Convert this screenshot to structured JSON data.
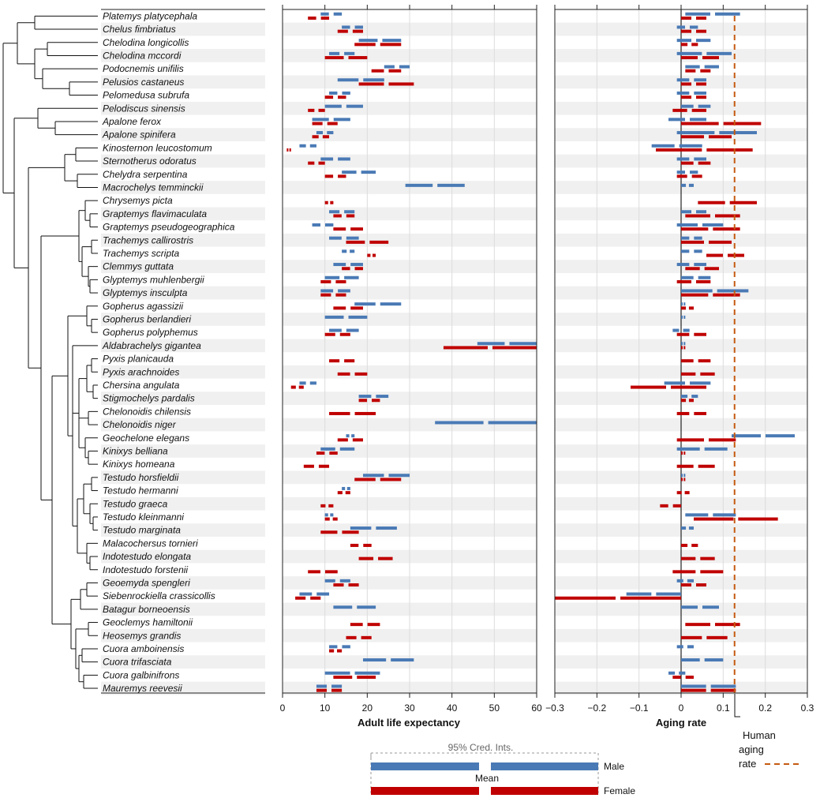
{
  "colors": {
    "male": "#4a7ab5",
    "female": "#c00000",
    "human": "#c55a11",
    "stripe": "#f0f0f0",
    "grid": "#dcdcdc"
  },
  "chart_data": [
    {
      "type": "interval",
      "xlabel": "Adult life expectancy",
      "xlim": [
        0,
        60
      ],
      "ticks": [
        "0",
        "10",
        "20",
        "30",
        "40",
        "50",
        "60"
      ],
      "series": [
        {
          "name": "Male",
          "intervals": [
            [
              9,
              14
            ],
            [
              14,
              19
            ],
            [
              18,
              28
            ],
            [
              11,
              17
            ],
            [
              24,
              30
            ],
            [
              13,
              24
            ],
            [
              11,
              16
            ],
            [
              10,
              19
            ],
            [
              7,
              16
            ],
            [
              8,
              12
            ],
            [
              4,
              8
            ],
            [
              9,
              16
            ],
            [
              14,
              22
            ],
            [
              29,
              43
            ],
            null,
            [
              11,
              17
            ],
            [
              7,
              12
            ],
            [
              11,
              18
            ],
            [
              14,
              17
            ],
            [
              12,
              19
            ],
            [
              10,
              18
            ],
            [
              9,
              16
            ],
            [
              17,
              28
            ],
            [
              10,
              20
            ],
            [
              11,
              18
            ],
            [
              46,
              62
            ],
            null,
            null,
            [
              4,
              8
            ],
            [
              18,
              25
            ],
            null,
            [
              36,
              62
            ],
            [
              15,
              17
            ],
            [
              9,
              17
            ],
            null,
            [
              19,
              30
            ],
            [
              14,
              16
            ],
            null,
            [
              10,
              12
            ],
            [
              16,
              27
            ],
            null,
            null,
            null,
            [
              10,
              16
            ],
            [
              4,
              11
            ],
            [
              12,
              22
            ],
            null,
            null,
            [
              11,
              16
            ],
            [
              19,
              31
            ],
            [
              10,
              23
            ],
            [
              8,
              14
            ]
          ]
        },
        {
          "name": "Female",
          "intervals": [
            [
              6,
              11
            ],
            [
              13,
              19
            ],
            [
              17,
              28
            ],
            [
              10,
              20
            ],
            [
              21,
              28
            ],
            [
              18,
              31
            ],
            [
              10,
              15
            ],
            [
              6,
              10
            ],
            [
              7,
              13
            ],
            [
              7,
              11
            ],
            [
              1,
              2
            ],
            [
              6,
              10
            ],
            [
              10,
              15
            ],
            null,
            [
              10,
              12
            ],
            [
              12,
              17
            ],
            [
              12,
              19
            ],
            [
              15,
              25
            ],
            [
              20,
              22
            ],
            [
              14,
              19
            ],
            [
              9,
              15
            ],
            [
              9,
              15
            ],
            [
              12,
              19
            ],
            [
              null,
              null
            ],
            [
              10,
              16
            ],
            [
              38,
              62
            ],
            [
              11,
              17
            ],
            [
              13,
              20
            ],
            [
              2,
              5
            ],
            [
              18,
              23
            ],
            [
              11,
              22
            ],
            null,
            [
              13,
              19
            ],
            [
              8,
              13
            ],
            [
              5,
              11
            ],
            [
              17,
              28
            ],
            [
              13,
              16
            ],
            [
              9,
              12
            ],
            [
              10,
              13
            ],
            [
              9,
              18
            ],
            [
              16,
              21
            ],
            [
              18,
              26
            ],
            [
              6,
              13
            ],
            [
              12,
              18
            ],
            [
              3,
              9
            ],
            null,
            [
              16,
              23
            ],
            [
              15,
              21
            ],
            [
              11,
              14
            ],
            null,
            [
              12,
              22
            ],
            [
              8,
              14
            ]
          ]
        }
      ]
    },
    {
      "type": "interval",
      "xlabel": "Aging rate",
      "xlim": [
        -0.3,
        0.3
      ],
      "ticks": [
        "−0.3",
        "−0.2",
        "−0.1",
        "0",
        "0.1",
        "0.2",
        "0.3"
      ],
      "human_aging_rate": 0.127,
      "series": [
        {
          "name": "Male",
          "intervals": [
            [
              0.01,
              0.14
            ],
            [
              -0.01,
              0.04
            ],
            [
              -0.01,
              0.07
            ],
            [
              -0.01,
              0.12
            ],
            [
              0.01,
              0.09
            ],
            [
              -0.01,
              0.06
            ],
            [
              -0.01,
              0.06
            ],
            [
              0.0,
              0.07
            ],
            [
              -0.03,
              0.06
            ],
            [
              -0.01,
              0.18
            ],
            [
              -0.07,
              0.05
            ],
            [
              -0.01,
              0.06
            ],
            [
              -0.01,
              0.04
            ],
            [
              0.0,
              0.03
            ],
            null,
            [
              0.0,
              0.06
            ],
            [
              -0.01,
              0.1
            ],
            [
              0.0,
              0.05
            ],
            [
              0.0,
              0.05
            ],
            [
              -0.01,
              0.06
            ],
            [
              0.0,
              0.07
            ],
            [
              0.0,
              0.16
            ],
            [
              0.0,
              0.01
            ],
            [
              0.0,
              0.01
            ],
            [
              -0.02,
              0.02
            ],
            [
              0.0,
              0.01
            ],
            null,
            null,
            [
              -0.04,
              0.07
            ],
            [
              0.0,
              0.04
            ],
            null,
            null,
            [
              0.12,
              0.27
            ],
            [
              -0.01,
              0.11
            ],
            null,
            [
              0.0,
              0.01
            ],
            null,
            null,
            [
              0.01,
              0.13
            ],
            [
              0.0,
              0.03
            ],
            null,
            null,
            null,
            [
              -0.01,
              0.03
            ],
            [
              -0.13,
              0.0
            ],
            [
              0.0,
              0.09
            ],
            null,
            null,
            [
              -0.01,
              0.03
            ],
            [
              0.0,
              0.1
            ],
            [
              -0.03,
              0.01
            ],
            [
              0.0,
              0.13
            ]
          ]
        },
        {
          "name": "Female",
          "intervals": [
            [
              0.0,
              0.06
            ],
            [
              0.0,
              0.06
            ],
            [
              0.0,
              0.04
            ],
            [
              0.0,
              0.09
            ],
            [
              0.01,
              0.07
            ],
            [
              0.0,
              0.06
            ],
            [
              0.0,
              0.06
            ],
            [
              -0.02,
              0.06
            ],
            [
              0.0,
              0.19
            ],
            [
              0.0,
              0.12
            ],
            [
              -0.06,
              0.17
            ],
            [
              0.0,
              0.07
            ],
            [
              -0.01,
              0.05
            ],
            null,
            [
              0.04,
              0.18
            ],
            [
              0.01,
              0.14
            ],
            [
              0.0,
              0.14
            ],
            [
              0.0,
              0.12
            ],
            [
              0.06,
              0.15
            ],
            [
              0.01,
              0.09
            ],
            [
              -0.01,
              0.07
            ],
            [
              0.0,
              0.14
            ],
            [
              0.0,
              0.03
            ],
            null,
            [
              -0.01,
              0.06
            ],
            [
              0.0,
              0.01
            ],
            [
              0.0,
              0.07
            ],
            [
              0.0,
              0.08
            ],
            [
              -0.12,
              0.06
            ],
            [
              0.0,
              0.03
            ],
            [
              -0.01,
              0.06
            ],
            null,
            [
              -0.01,
              0.13
            ],
            [
              0.0,
              0.01
            ],
            [
              -0.01,
              0.08
            ],
            [
              0.0,
              0.01
            ],
            [
              -0.01,
              0.02
            ],
            [
              -0.05,
              0.0
            ],
            [
              0.03,
              0.23
            ],
            null,
            [
              0.0,
              0.04
            ],
            [
              0.0,
              0.08
            ],
            [
              -0.02,
              0.1
            ],
            [
              0.0,
              0.06
            ],
            [
              -0.32,
              0.0
            ],
            null,
            [
              0.01,
              0.14
            ],
            [
              0.0,
              0.11
            ],
            null,
            null,
            [
              -0.02,
              0.03
            ],
            [
              0.0,
              0.13
            ]
          ]
        }
      ]
    }
  ],
  "species": [
    "Platemys platycephala",
    "Chelus fimbriatus",
    "Chelodina longicollis",
    "Chelodina mccordi",
    "Podocnemis unifilis",
    "Pelusios castaneus",
    "Pelomedusa subrufa",
    "Pelodiscus sinensis",
    "Apalone ferox",
    "Apalone spinifera",
    "Kinosternon leucostomum",
    "Sternotherus odoratus",
    "Chelydra serpentina",
    "Macrochelys temminckii",
    "Chrysemys picta",
    "Graptemys flavimaculata",
    "Graptemys pseudogeographica",
    "Trachemys callirostris",
    "Trachemys scripta",
    "Clemmys guttata",
    "Glyptemys muhlenbergii",
    "Glyptemys insculpta",
    "Gopherus agassizii",
    "Gopherus berlandieri",
    "Gopherus polyphemus",
    "Aldabrachelys gigantea",
    "Pyxis planicauda",
    "Pyxis arachnoides",
    "Chersina angulata",
    "Stigmochelys pardalis",
    "Chelonoidis chilensis",
    "Chelonoidis niger",
    "Geochelone elegans",
    "Kinixys belliana",
    "Kinixys homeana",
    "Testudo horsfieldii",
    "Testudo hermanni",
    "Testudo graeca",
    "Testudo kleinmanni",
    "Testudo marginata",
    "Malacochersus tornieri",
    "Indotestudo elongata",
    "Indotestudo forstenii",
    "Geoemyda spengleri",
    "Siebenrockiella crassicollis",
    "Batagur borneoensis",
    "Geoclemys hamiltonii",
    "Heosemys grandis",
    "Cuora amboinensis",
    "Cuora trifasciata",
    "Cuora galbinifrons",
    "Mauremys reevesii"
  ],
  "legend": {
    "ci": "95% Cred. Ints.",
    "mean": "Mean",
    "male": "Male",
    "female": "Female"
  },
  "human": {
    "line1": "Human",
    "line2": "aging",
    "line3": "rate"
  }
}
